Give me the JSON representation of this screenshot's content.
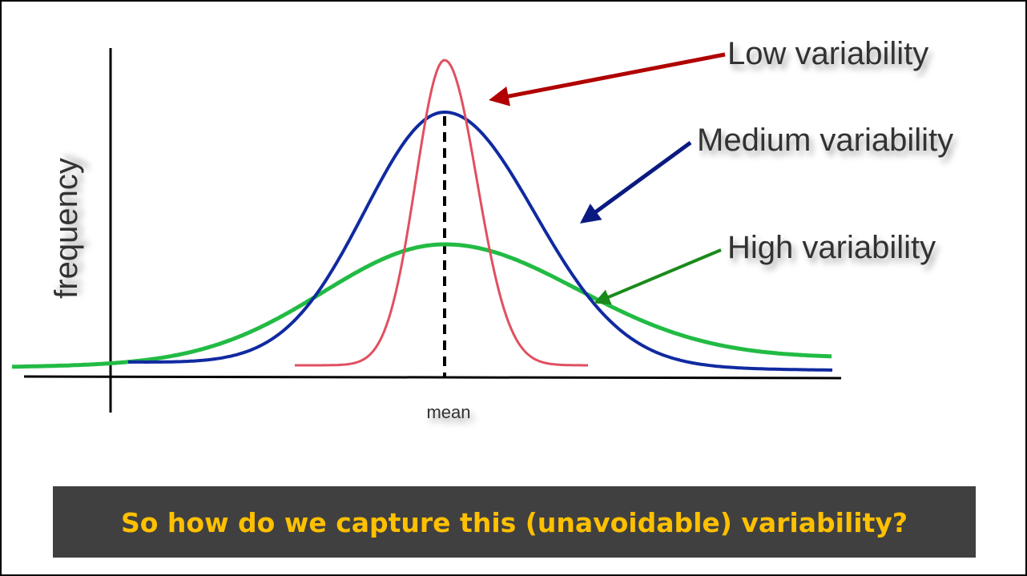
{
  "labels": {
    "low": "Low variability",
    "medium": "Medium variability",
    "high": "High variability"
  },
  "axes": {
    "y": "frequency",
    "x": "mean"
  },
  "caption": "So how do we capture this (unavoidable) variability?"
}
